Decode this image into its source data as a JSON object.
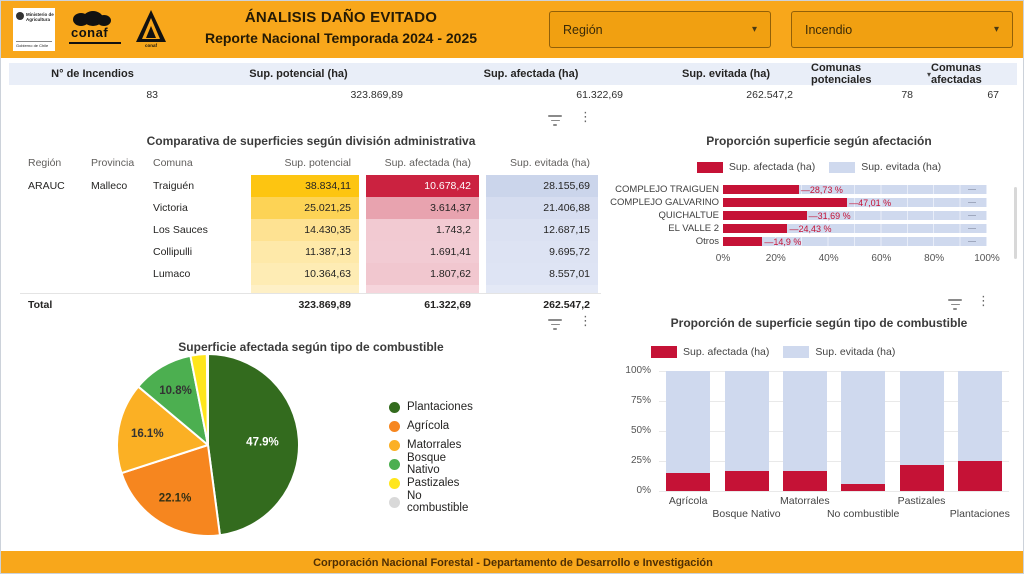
{
  "header": {
    "title_line1": "ÁNALISIS DAÑO EVITADO",
    "title_line2": "Reporte Nacional Temporada 2024 - 2025",
    "filters": [
      "Región",
      "Incendio"
    ],
    "logos": {
      "gobierno": {
        "line1": "Ministerio de Agricultura",
        "bottom": "Gobierno de Chile"
      },
      "conaf_wordmark": "conaf",
      "triangle_caption": "conaf"
    }
  },
  "icons": {
    "kebab": "⋮",
    "dropdown_caret": "▾",
    "sort_caret": "▾"
  },
  "kpis": {
    "columns": [
      "N° de Incendios",
      "Sup. potencial (ha)",
      "Sup. afectada (ha)",
      "Sup. evitada (ha)",
      "Comunas potenciales",
      "Comunas afectadas"
    ],
    "values": [
      "83",
      "323.869,89",
      "61.322,69",
      "262.547,2",
      "78",
      "67"
    ]
  },
  "table": {
    "title": "Comparativa de superficies según división administrativa",
    "columns": [
      "Región",
      "Provincia",
      "Comuna",
      "Sup. potencial",
      "Sup. afectada (ha)",
      "Sup. evitada (ha)"
    ],
    "rows": [
      {
        "region": "ARAUC",
        "provincia": "Malleco",
        "comuna": "Traiguén",
        "potencial": "38.834,11",
        "afectada": "10.678,42",
        "evitada": "28.155,69"
      },
      {
        "region": "",
        "provincia": "",
        "comuna": "Victoria",
        "potencial": "25.021,25",
        "afectada": "3.614,37",
        "evitada": "21.406,88"
      },
      {
        "region": "",
        "provincia": "",
        "comuna": "Los Sauces",
        "potencial": "14.430,35",
        "afectada": "1.743,2",
        "evitada": "12.687,15"
      },
      {
        "region": "",
        "provincia": "",
        "comuna": "Collipulli",
        "potencial": "11.387,13",
        "afectada": "1.691,41",
        "evitada": "9.695,72"
      },
      {
        "region": "",
        "provincia": "",
        "comuna": "Lumaco",
        "potencial": "10.364,63",
        "afectada": "1.807,62",
        "evitada": "8.557,01"
      }
    ],
    "total": {
      "label": "Total",
      "potencial": "323.869,89",
      "afectada": "61.322,69",
      "evitada": "262.547,2"
    },
    "cell_colors": {
      "potencial": [
        "#FDC511",
        "#FDD355",
        "#FEE292",
        "#FEE9A9",
        "#FEECB4"
      ],
      "afectada": [
        "#CB2240",
        "#E8A3AF",
        "#F2CAD2",
        "#F2CBD3",
        "#F1C7CF"
      ],
      "afectada_text": [
        "#FFFFFF",
        "#252423",
        "#252423",
        "#252423",
        "#252423"
      ],
      "evitada": [
        "#CBD5EB",
        "#D6DDF0",
        "#DBE1F2",
        "#DDE3F3",
        "#DEE4F4"
      ],
      "strip": [
        "#FEF0C6",
        "#F6D5DC",
        "#E4E9F6"
      ]
    }
  },
  "chart_data": [
    {
      "type": "bar",
      "orientation": "horizontal",
      "stacked_percent": true,
      "title": "Proporción superficie según afectación",
      "categories": [
        "COMPLEJO TRAIGUEN",
        "COMPLEJO GALVARINO",
        "QUICHALTUE",
        "EL VALLE 2",
        "Otros"
      ],
      "series": [
        {
          "name": "Sup. afectada (ha)",
          "color": "#C51236",
          "values": [
            28.73,
            47.01,
            31.69,
            24.43,
            14.9
          ]
        },
        {
          "name": "Sup. evitada (ha)",
          "color": "#CFD9EE",
          "values": [
            71.27,
            52.99,
            68.31,
            75.57,
            85.1
          ]
        }
      ],
      "bar_labels": [
        "28,73 %",
        "47,01 %",
        "31,69 %",
        "24,43 %",
        "14,9 %"
      ],
      "xticks": [
        "0%",
        "20%",
        "40%",
        "60%",
        "80%",
        "100%"
      ],
      "xlim": [
        0,
        100
      ],
      "legend_position": "top-center",
      "grid": false
    },
    {
      "type": "pie",
      "title": "Superficie afectada según tipo de combustible",
      "labels": [
        "Plantaciones",
        "Agrícola",
        "Matorrales",
        "Bosque Nativo",
        "Pastizales",
        "No combustible"
      ],
      "values": [
        47.9,
        22.1,
        16.1,
        10.8,
        2.9,
        0.2
      ],
      "colors": [
        "#336B1E",
        "#F6861F",
        "#FBB024",
        "#4CAF50",
        "#FFE61C",
        "#D9D9D9"
      ],
      "slice_labels": [
        "47.9%",
        "22.1%",
        "16.1%",
        "10.8%",
        "",
        ""
      ],
      "legend_position": "right"
    },
    {
      "type": "bar",
      "orientation": "vertical",
      "stacked_percent": true,
      "title": "Proporción de superficie según tipo de combustible",
      "categories": [
        "Agrícola",
        "Bosque Nativo",
        "Matorrales",
        "No combustible",
        "Pastizales",
        "Plantaciones"
      ],
      "series": [
        {
          "name": "Sup. afectada (ha)",
          "color": "#C51236",
          "values": [
            15,
            17,
            16.5,
            5.5,
            22,
            25
          ]
        },
        {
          "name": "Sup. evitada (ha)",
          "color": "#CFD9EE",
          "values": [
            85,
            83,
            83.5,
            94.5,
            78,
            75
          ]
        }
      ],
      "yticks": [
        "0%",
        "25%",
        "50%",
        "75%",
        "100%"
      ],
      "ylim": [
        0,
        100
      ],
      "legend_position": "top-left",
      "grid": true
    }
  ],
  "footer": {
    "text": "Corporación Nacional Forestal - Departamento de Desarrollo e Investigación"
  },
  "colors": {
    "header_bg": "#F8A71B",
    "dropdown_bg": "#F1A011",
    "footer_bg": "#F8A71B",
    "kpi_header_bg": "#E9EEF8",
    "accent_red": "#C51236",
    "evitada_blue": "#CFD9EE"
  }
}
